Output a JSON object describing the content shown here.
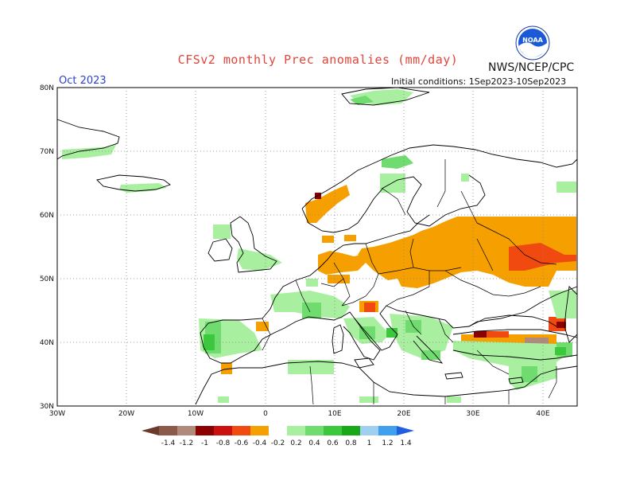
{
  "title": "CFSv2 monthly Prec anomalies (mm/day)",
  "agency": "NWS/NCEP/CPC",
  "month_label": "Oct 2023",
  "initial_conditions": "Initial conditions: 1Sep2023-10Sep2023",
  "logo_text": "NOAA",
  "lat_ticks": [
    "80N",
    "70N",
    "60N",
    "50N",
    "40N",
    "30N"
  ],
  "lon_ticks": [
    "30W",
    "20W",
    "10W",
    "0",
    "10E",
    "20E",
    "30E",
    "40E"
  ],
  "colorbar": {
    "labels": [
      "-1.4",
      "-1.2",
      "-1",
      "-0.8",
      "-0.6",
      "-0.4",
      "-0.2",
      "0.2",
      "0.4",
      "0.6",
      "0.8",
      "1",
      "1.2",
      "1.4"
    ],
    "colors": [
      "#6b3a2a",
      "#8c5a4a",
      "#b08a7a",
      "#8b0000",
      "#cc1010",
      "#f04a10",
      "#f5a000",
      "#ffffff",
      "#a8f0a0",
      "#70dc70",
      "#3cc83c",
      "#18a818",
      "#a0d0f0",
      "#40a0f0",
      "#2060e0"
    ]
  },
  "map": {
    "extent": {
      "lon": [
        -30,
        45
      ],
      "lat": [
        30,
        80
      ]
    },
    "colors": {
      "orange": "#f5a000",
      "red": "#f04a10",
      "darkred": "#cc1010",
      "maroon": "#8b0000",
      "brown": "#b08a7a",
      "lightgreen": "#a8f0a0",
      "green": "#70dc70",
      "midgreen": "#3cc83c"
    }
  }
}
